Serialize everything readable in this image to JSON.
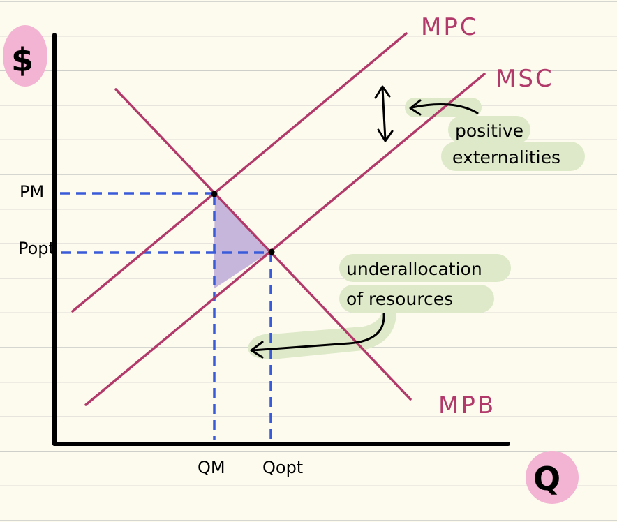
{
  "y_axis_label": "$",
  "x_axis_label": "Q",
  "curves": {
    "mpc": "MPC",
    "msc": "MSC",
    "mpb": "MPB"
  },
  "price_labels": {
    "market": "PM",
    "optimal": "Popt"
  },
  "quantity_labels": {
    "market": "QM",
    "optimal": "Qopt"
  },
  "annotations": {
    "externality_line1": "positive",
    "externality_line2": "externalities",
    "underallocation_line1": "underallocation",
    "underallocation_line2": "of resources"
  },
  "colors": {
    "paper": "#fdfbee",
    "ruled_line": "#bfbfbf",
    "curve": "#b23a6a",
    "curve_label": "#b23a6a",
    "dashed_guide": "#3a5bd9",
    "pink_highlight": "#f3b3d2",
    "green_highlight": "#dde9c8",
    "purple_fill": "#c7b6dc",
    "ink": "#000000"
  }
}
